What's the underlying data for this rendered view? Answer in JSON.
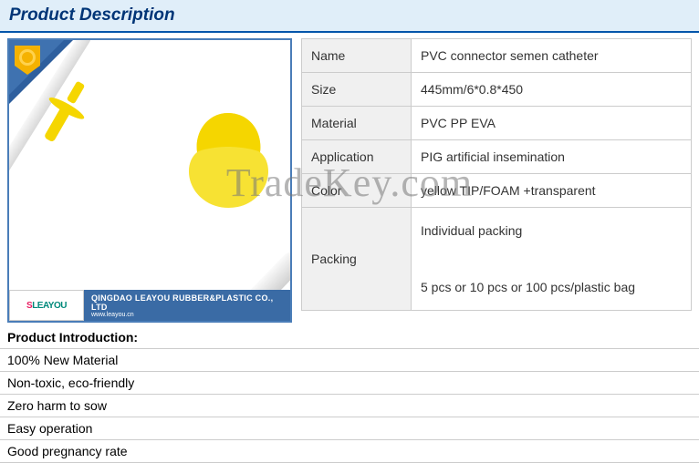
{
  "header": {
    "title": "Product Description"
  },
  "watermark": "TradeKey.com",
  "image": {
    "company_name": "QINGDAO LEAYOU RUBBER&PLASTIC CO., LTD",
    "company_url": "www.leayou.cn",
    "logo_prefix": "S",
    "logo_rest": "LEAYOU"
  },
  "specs": {
    "rows": [
      {
        "label": "Name",
        "value": "PVC connector semen catheter"
      },
      {
        "label": "Size",
        "value": "445mm/6*0.8*450"
      },
      {
        "label": "Material",
        "value": " PVC PP EVA"
      },
      {
        "label": "Application",
        "value": "PIG artificial insemination"
      },
      {
        "label": "Color",
        "value": "yellow TIP/FOAM +transparent"
      },
      {
        "label": "Packing",
        "value": "Individual packing\n\n5 pcs or 10 pcs or 100 pcs/plastic bag"
      }
    ]
  },
  "intro": {
    "heading": "Product Introduction:",
    "items": [
      "100% New Material",
      "Non-toxic, eco-friendly",
      "Zero harm to sow",
      "Easy operation",
      "Good pregnancy rate"
    ]
  },
  "colors": {
    "header_bg": "#e0eef9",
    "header_border": "#0055aa",
    "title_color": "#003577",
    "table_border": "#cccccc",
    "label_bg": "#f0f0f0",
    "yellow": "#f5d600",
    "ribbon": "#2e5f9e"
  }
}
